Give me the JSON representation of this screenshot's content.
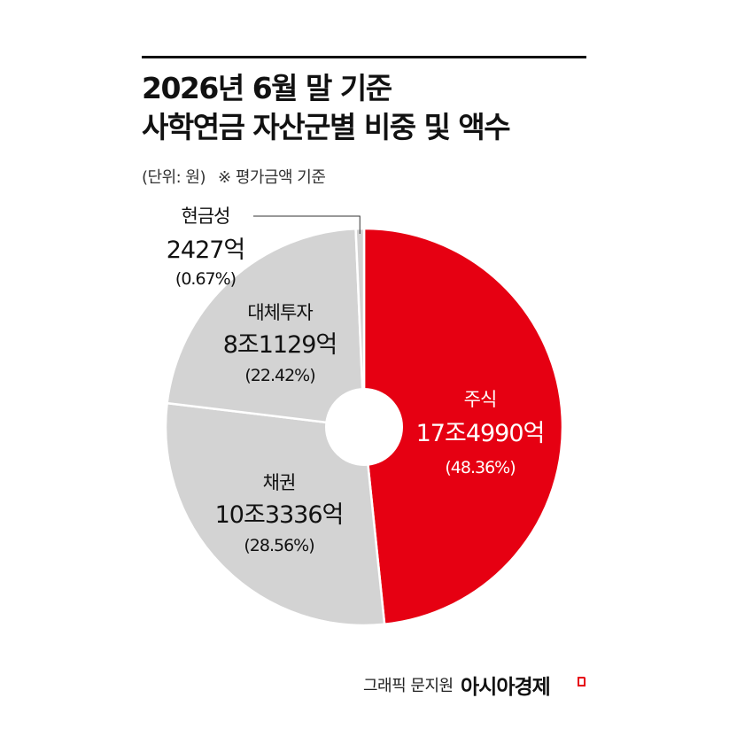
{
  "title": {
    "line1": "2026년 6월 말 기준",
    "line2": "사학연금 자산군별 비중 및 액수"
  },
  "subtitle": {
    "unit": "(단위: 원)",
    "note": "※ 평가금액 기준"
  },
  "chart_data": {
    "type": "pie",
    "donut": true,
    "start": "12 o'clock, clockwise",
    "slices": [
      {
        "label": "주식",
        "amount": "17조4990억",
        "percent_label": "(48.36%)",
        "percent": 48.36,
        "color": "#e60012",
        "text_color": "#ffffff"
      },
      {
        "label": "채권",
        "amount": "10조3336억",
        "percent_label": "(28.56%)",
        "percent": 28.56,
        "color": "#d3d3d3",
        "text_color": "#111111"
      },
      {
        "label": "대체투자",
        "amount": "8조1129억",
        "percent_label": "(22.42%)",
        "percent": 22.42,
        "color": "#d3d3d3",
        "text_color": "#111111"
      },
      {
        "label": "현금성",
        "amount": "2427억",
        "percent_label": "(0.67%)",
        "percent": 0.67,
        "color": "#d3d3d3",
        "text_color": "#111111"
      }
    ]
  },
  "footer": {
    "credit": "그래픽 문지원",
    "brand": "아시아경제"
  }
}
